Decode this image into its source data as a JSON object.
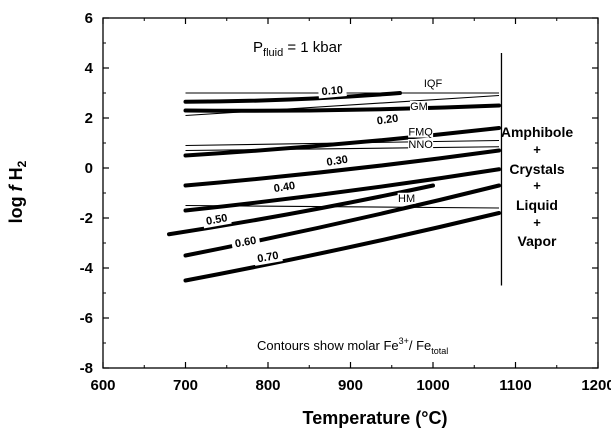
{
  "chart_data": {
    "type": "line",
    "title": "",
    "condition": {
      "p": "P",
      "sub": "fluid",
      "rest": " = 1 kbar"
    },
    "xlabel": {
      "main": "Temperature  (",
      "deg": "°",
      "unit": "C)"
    },
    "ylabel": {
      "pre": "log ",
      "f": "f",
      "species": " H",
      "sub": "2"
    },
    "xlim": [
      600,
      1200
    ],
    "ylim": [
      -8,
      6
    ],
    "xticks": [
      600,
      700,
      800,
      900,
      1000,
      1100,
      1200
    ],
    "yticks": [
      -8,
      -6,
      -4,
      -2,
      0,
      2,
      4,
      6
    ],
    "xtick_labels": [
      "600",
      "700",
      "800",
      "900",
      "1000",
      "1100",
      "1200"
    ],
    "ytick_labels": [
      "-8",
      "-6",
      "-4",
      "-2",
      "0",
      "2",
      "4",
      "6"
    ],
    "grid": false,
    "buffers": [
      {
        "name": "IQF",
        "x": [
          700,
          1080
        ],
        "y": [
          3.0,
          3.0
        ]
      },
      {
        "name": "GM",
        "x": [
          700,
          1080
        ],
        "y": [
          2.1,
          2.9
        ]
      },
      {
        "name": "FMQ",
        "x": [
          700,
          1080
        ],
        "y": [
          0.9,
          1.1
        ]
      },
      {
        "name": "NNO",
        "x": [
          700,
          1080
        ],
        "y": [
          0.7,
          0.85
        ]
      },
      {
        "name": "HM",
        "x": [
          700,
          1080
        ],
        "y": [
          -1.5,
          -1.6
        ]
      }
    ],
    "contours": [
      {
        "name": "0.10",
        "x": [
          700,
          960
        ],
        "y": [
          2.65,
          3.0
        ]
      },
      {
        "name": "0.20",
        "x": [
          700,
          1080
        ],
        "y": [
          2.3,
          2.5
        ]
      },
      {
        "name": "0.30",
        "x": [
          700,
          1080
        ],
        "y": [
          0.5,
          1.6
        ]
      },
      {
        "name": "0.40",
        "x": [
          700,
          1080
        ],
        "y": [
          -0.7,
          0.7
        ]
      },
      {
        "name": "0.50",
        "x": [
          700,
          1080
        ],
        "y": [
          -1.7,
          -0.05
        ]
      },
      {
        "name": "0.60",
        "x": [
          700,
          1080
        ],
        "y": [
          -3.5,
          -0.7
        ]
      },
      {
        "name": "0.70",
        "x": [
          700,
          1080
        ],
        "y": [
          -4.5,
          -1.8
        ]
      },
      {
        "name": "",
        "x": [
          680,
          1000
        ],
        "y": [
          -2.65,
          -0.7
        ]
      }
    ],
    "boundary": {
      "x": 1083,
      "y": [
        -4.7,
        4.6
      ]
    },
    "phase_field": [
      "Amphibole",
      "+",
      "Crystals",
      "+",
      "Liquid",
      "+",
      "Vapor"
    ],
    "note": {
      "text": "Contours show molar Fe",
      "sup": "3+",
      "mid": "/ Fe",
      "sub": "total"
    }
  }
}
